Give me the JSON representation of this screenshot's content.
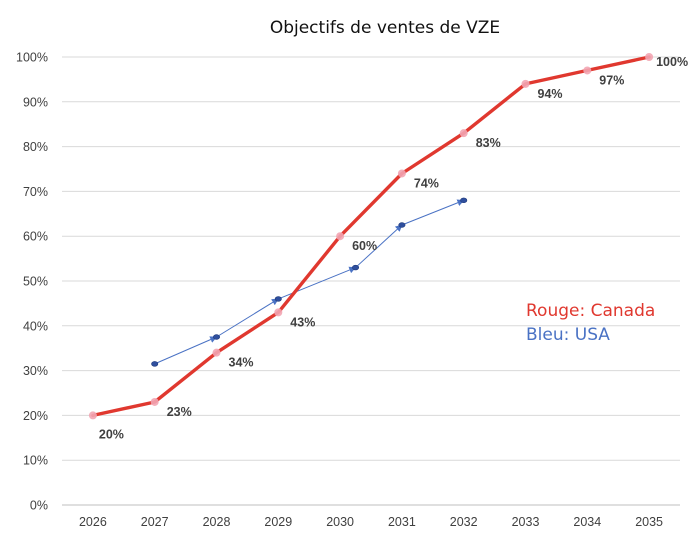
{
  "chart_data": {
    "type": "line",
    "title": "Objectifs de ventes de VZE",
    "xlabel": "",
    "ylabel": "",
    "x_tick_labels": [
      "2026",
      "2027",
      "2028",
      "2029",
      "2030",
      "2031",
      "2032",
      "2033",
      "2034",
      "2035"
    ],
    "y_tick_labels": [
      "0%",
      "10%",
      "20%",
      "30%",
      "40%",
      "50%",
      "60%",
      "70%",
      "80%",
      "90%",
      "100%"
    ],
    "xlim": [
      2025.5,
      2035.5
    ],
    "ylim": [
      0,
      100
    ],
    "grid": "horizontal",
    "series": [
      {
        "key": "canada",
        "color": "#e0382f",
        "x": [
          2026,
          2027,
          2028,
          2029,
          2030,
          2031,
          2032,
          2033,
          2034,
          2035
        ],
        "values": [
          20,
          23,
          34,
          43,
          60,
          74,
          83,
          94,
          97,
          100
        ],
        "data_labels": [
          "20%",
          "23%",
          "34%",
          "43%",
          "60%",
          "74%",
          "83%",
          "94%",
          "97%",
          "100%"
        ]
      },
      {
        "key": "usa",
        "color": "#4a72c4",
        "x": [
          2027,
          2028,
          2029,
          2030.25,
          2031,
          2032
        ],
        "values": [
          31.5,
          37.5,
          46,
          53,
          62.5,
          68
        ]
      }
    ],
    "annotations": [
      {
        "text": "Rouge: Canada",
        "color": "#e0382f"
      },
      {
        "text": "Bleu: USA",
        "color": "#4a72c4"
      }
    ]
  }
}
